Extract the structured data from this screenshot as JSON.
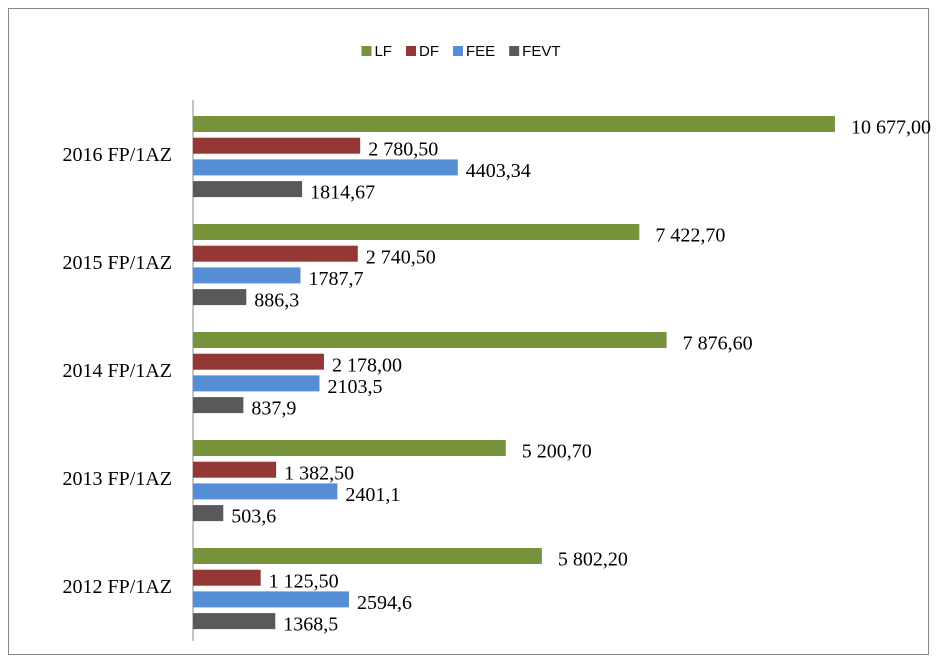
{
  "chart_data": {
    "type": "bar",
    "orientation": "horizontal",
    "categories": [
      "2016 FP/1AZ",
      "2015 FP/1AZ",
      "2014 FP/1AZ",
      "2013 FP/1AZ",
      "2012 FP/1AZ"
    ],
    "legend": "top",
    "series": [
      {
        "name": "LF",
        "color": "#77933c",
        "values": [
          10677,
          7422.7,
          7876.6,
          5200.7,
          5802.2
        ],
        "value_labels": [
          "10 677,00",
          "7 422,70",
          "7 876,60",
          "5 200,70",
          "5 802,20"
        ]
      },
      {
        "name": "DF",
        "color": "#953735",
        "values": [
          2780.5,
          2740.5,
          2178,
          1382.5,
          1125.5
        ],
        "value_labels": [
          "2 780,50",
          "2 740,50",
          "2 178,00",
          "1 382,50",
          "1 125,50"
        ]
      },
      {
        "name": "FEE",
        "color": "#558ed5",
        "values": [
          4403.34,
          1787.7,
          2103.5,
          2401.1,
          2594.6
        ],
        "value_labels": [
          "4403,34",
          "1787,7",
          "2103,5",
          "2401,1",
          "2594,6"
        ]
      },
      {
        "name": "FEVT",
        "color": "#595959",
        "values": [
          1814.67,
          886.3,
          837.9,
          503.6,
          1368.5
        ],
        "value_labels": [
          "1814,67",
          "886,3",
          "837,9",
          "503,6",
          "1368,5"
        ]
      }
    ]
  }
}
